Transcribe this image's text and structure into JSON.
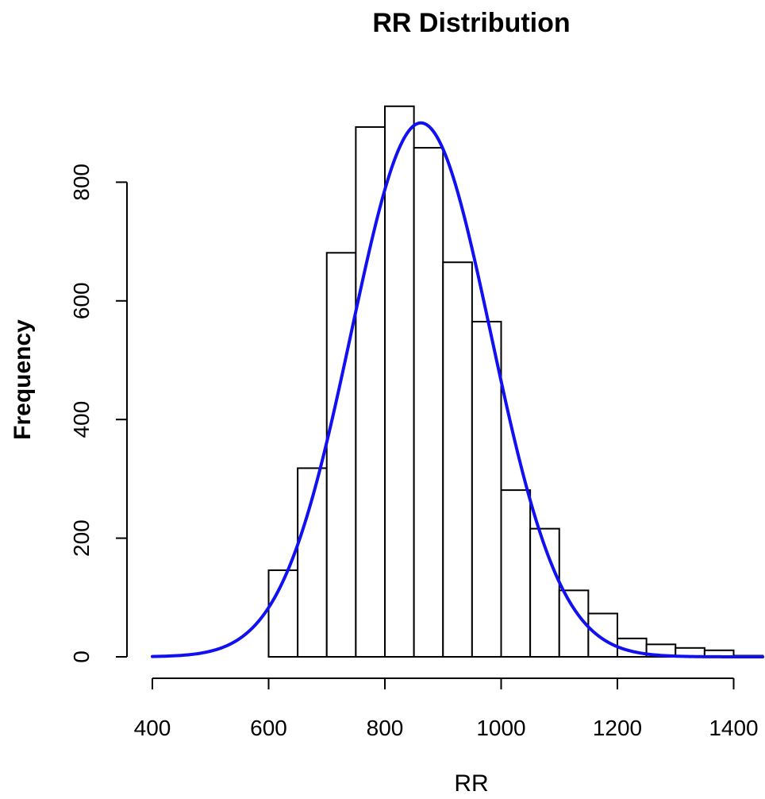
{
  "chart_data": {
    "type": "bar",
    "title": "RR Distribution",
    "xlabel": "RR",
    "ylabel": "Frequency",
    "xlim": [
      400,
      1450
    ],
    "ylim": [
      0,
      940
    ],
    "x_ticks": [
      400,
      600,
      800,
      1000,
      1200,
      1400
    ],
    "y_ticks": [
      0,
      200,
      400,
      600,
      800
    ],
    "bin_width": 50,
    "bins": [
      {
        "start": 600,
        "end": 650,
        "count": 146
      },
      {
        "start": 650,
        "end": 700,
        "count": 318
      },
      {
        "start": 700,
        "end": 750,
        "count": 681
      },
      {
        "start": 750,
        "end": 800,
        "count": 893
      },
      {
        "start": 800,
        "end": 850,
        "count": 928
      },
      {
        "start": 850,
        "end": 900,
        "count": 858
      },
      {
        "start": 900,
        "end": 950,
        "count": 665
      },
      {
        "start": 950,
        "end": 1000,
        "count": 565
      },
      {
        "start": 1000,
        "end": 1050,
        "count": 281
      },
      {
        "start": 1050,
        "end": 1100,
        "count": 216
      },
      {
        "start": 1100,
        "end": 1150,
        "count": 112
      },
      {
        "start": 1150,
        "end": 1200,
        "count": 73
      },
      {
        "start": 1200,
        "end": 1250,
        "count": 31
      },
      {
        "start": 1250,
        "end": 1300,
        "count": 21
      },
      {
        "start": 1300,
        "end": 1350,
        "count": 15
      },
      {
        "start": 1350,
        "end": 1400,
        "count": 11
      },
      {
        "start": 1400,
        "end": 1450,
        "count": 2
      }
    ],
    "curve": {
      "type": "normal-density",
      "mean": 862,
      "sd": 120,
      "peak": 900,
      "x_range": [
        400,
        1450
      ],
      "color": "#1010f0"
    },
    "grid": false,
    "legend": "none"
  }
}
